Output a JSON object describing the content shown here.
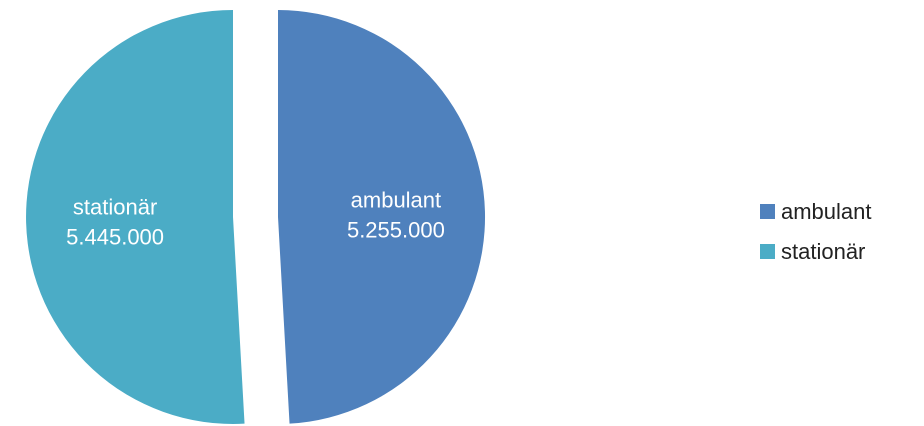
{
  "chart_data": {
    "type": "pie",
    "title": "",
    "slices": [
      {
        "label": "ambulant",
        "value": 5255000,
        "value_label": "5.255.000",
        "color": "#4f81bd"
      },
      {
        "label": "stationär",
        "value": 5445000,
        "value_label": "5.445.000",
        "color": "#4bacc6"
      }
    ],
    "legend_position": "right",
    "exploded": true
  }
}
